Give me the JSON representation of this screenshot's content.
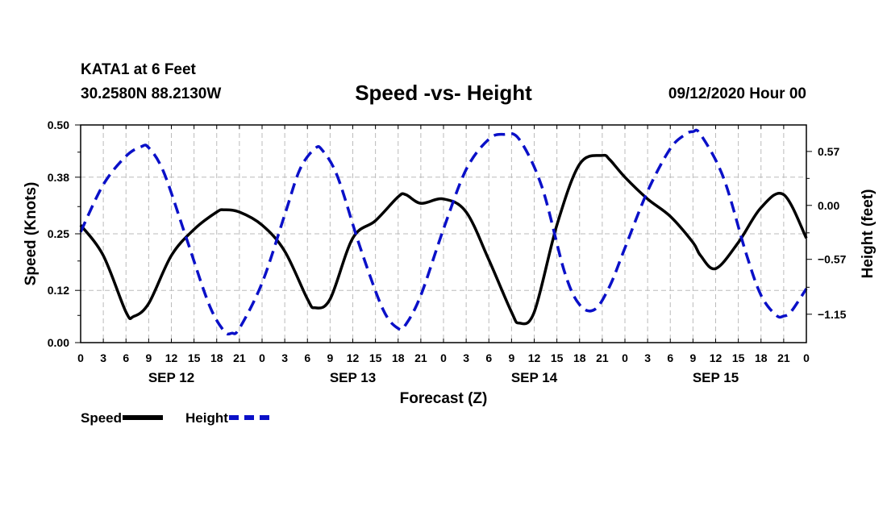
{
  "header": {
    "station": "KATA1 at 6 Feet",
    "coordinates": "30.2580N 88.2130W",
    "title": "Speed -vs- Height",
    "datetime": "09/12/2020 Hour 00"
  },
  "legend": {
    "speed_label": "Speed",
    "height_label": "Height"
  },
  "colors": {
    "speed": "#000000",
    "height": "#0a10c8",
    "grid": "#bbbbbb"
  },
  "chart_data": {
    "type": "line",
    "title": "Speed -vs- Height",
    "xlabel": "Forecast (Z)",
    "ylabel": "Speed (Knots)",
    "y2label": "Height (feet)",
    "xlim": [
      0,
      96
    ],
    "ylim": [
      0,
      0.5
    ],
    "y2lim": [
      -1.45,
      0.85
    ],
    "yticks": [
      "0.00",
      "0.12",
      "0.25",
      "0.38",
      "0.50"
    ],
    "y2ticks": [
      {
        "value": 0.57,
        "label": "0.57"
      },
      {
        "value": 0.0,
        "label": "0.00"
      },
      {
        "value": -0.57,
        "label": "−0.57"
      },
      {
        "value": -1.15,
        "label": "−1.15"
      }
    ],
    "xtick_labels": [
      "0",
      "3",
      "6",
      "9",
      "12",
      "15",
      "18",
      "21",
      "0",
      "3",
      "6",
      "9",
      "12",
      "15",
      "18",
      "21",
      "0",
      "3",
      "6",
      "9",
      "12",
      "15",
      "18",
      "21",
      "0",
      "3",
      "6",
      "9",
      "12",
      "15",
      "18",
      "21",
      "0"
    ],
    "day_labels": [
      {
        "label": "SEP 12",
        "hour": 12
      },
      {
        "label": "SEP 13",
        "hour": 36
      },
      {
        "label": "SEP 14",
        "hour": 60
      },
      {
        "label": "SEP 15",
        "hour": 84
      }
    ],
    "grid": true,
    "series": [
      {
        "name": "Speed",
        "axis": "left",
        "style": "solid",
        "x": [
          0,
          3,
          6,
          7,
          9,
          12,
          15,
          18,
          19,
          21,
          24,
          27,
          30,
          31,
          33,
          36,
          39,
          42,
          43,
          45,
          48,
          51,
          54,
          57,
          58,
          60,
          63,
          66,
          69,
          70,
          72,
          75,
          78,
          81,
          82,
          84,
          87,
          90,
          93,
          96
        ],
        "values": [
          0.27,
          0.2,
          0.07,
          0.06,
          0.09,
          0.2,
          0.26,
          0.3,
          0.305,
          0.3,
          0.27,
          0.21,
          0.1,
          0.08,
          0.1,
          0.24,
          0.28,
          0.335,
          0.34,
          0.32,
          0.33,
          0.3,
          0.19,
          0.07,
          0.045,
          0.07,
          0.27,
          0.41,
          0.43,
          0.42,
          0.38,
          0.33,
          0.29,
          0.23,
          0.2,
          0.17,
          0.23,
          0.31,
          0.34,
          0.24
        ]
      },
      {
        "name": "Height",
        "axis": "right",
        "style": "dashed",
        "x": [
          0,
          3,
          6,
          8,
          9,
          11,
          14,
          17,
          19,
          20,
          21,
          24,
          27,
          29,
          31,
          32,
          34,
          37,
          40,
          42,
          43,
          45,
          48,
          51,
          54,
          56,
          58,
          61,
          64,
          66,
          68,
          70,
          72,
          75,
          78,
          80,
          81,
          82,
          85,
          88,
          90,
          92,
          93,
          94,
          96
        ],
        "values": [
          -0.28,
          0.22,
          0.52,
          0.62,
          0.61,
          0.35,
          -0.35,
          -1.05,
          -1.33,
          -1.35,
          -1.3,
          -0.82,
          -0.1,
          0.38,
          0.6,
          0.58,
          0.3,
          -0.45,
          -1.1,
          -1.3,
          -1.26,
          -0.95,
          -0.25,
          0.38,
          0.7,
          0.75,
          0.7,
          0.2,
          -0.7,
          -1.05,
          -1.1,
          -0.85,
          -0.45,
          0.15,
          0.6,
          0.75,
          0.78,
          0.75,
          0.3,
          -0.5,
          -0.95,
          -1.16,
          -1.17,
          -1.12,
          -0.88
        ]
      }
    ]
  }
}
